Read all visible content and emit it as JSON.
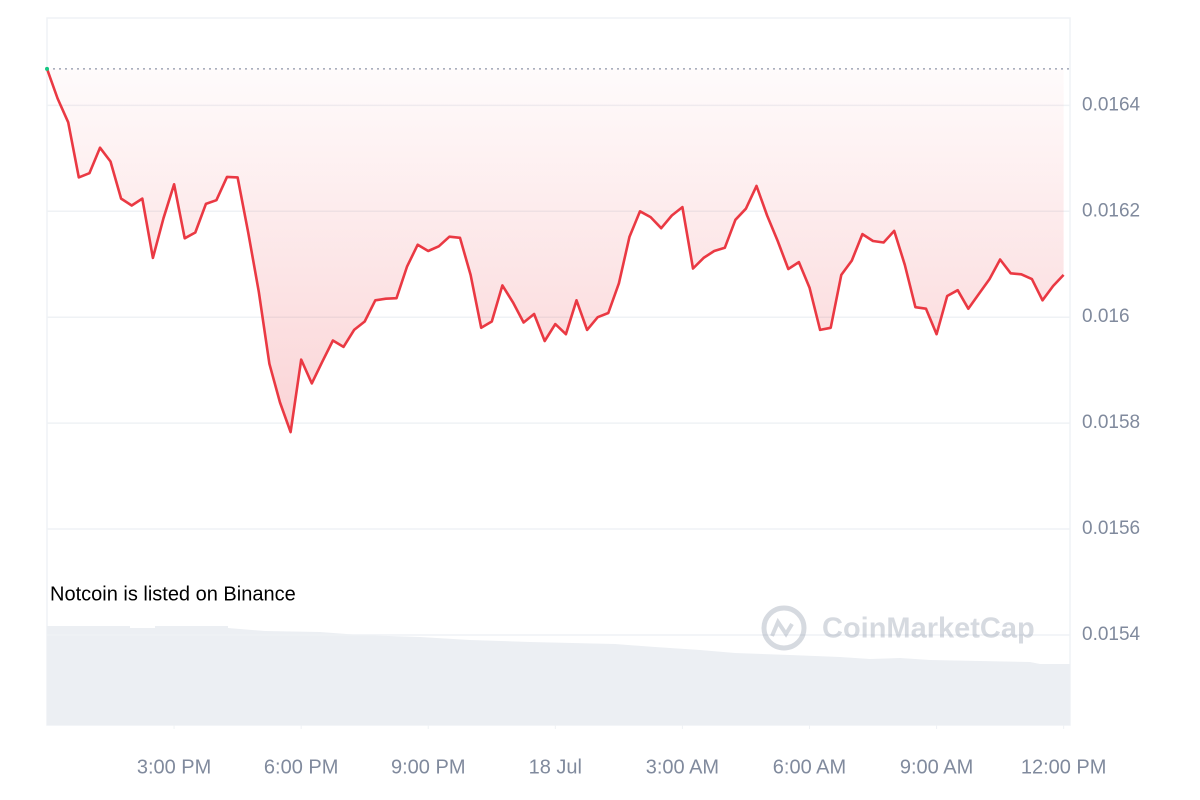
{
  "chart_data": {
    "type": "line",
    "annotation": "Notcoin is listed on Binance",
    "watermark": "CoinMarketCap",
    "color": "#ea3943",
    "x": [
      12,
      12.25,
      12.5,
      12.75,
      13,
      13.25,
      13.5,
      13.75,
      14,
      14.25,
      14.5,
      14.75,
      15,
      15.25,
      15.5,
      15.75,
      16,
      16.25,
      16.5,
      16.75,
      17,
      17.25,
      17.5,
      17.75,
      18,
      18.25,
      18.5,
      18.75,
      19,
      19.25,
      19.5,
      19.75,
      20,
      20.25,
      20.5,
      20.75,
      21,
      21.25,
      21.5,
      21.75,
      22,
      22.25,
      22.5,
      22.75,
      23,
      23.25,
      23.5,
      23.75,
      24,
      24.25,
      24.5,
      24.75,
      25,
      25.25,
      25.5,
      25.75,
      26,
      26.25,
      26.5,
      26.75,
      27,
      27.25,
      27.5,
      27.75,
      28,
      28.25,
      28.5,
      28.75,
      29,
      29.25,
      29.5,
      29.75,
      30,
      30.25,
      30.5,
      30.75,
      31,
      31.25,
      31.5,
      31.75,
      32,
      32.25,
      32.5,
      32.75,
      33,
      33.25,
      33.5,
      33.75,
      34,
      34.25,
      34.5,
      34.75,
      35,
      35.25,
      35.5,
      35.75,
      36
    ],
    "values": [
      0.016469,
      0.016413,
      0.016368,
      0.016264,
      0.016272,
      0.01632,
      0.016294,
      0.016224,
      0.016211,
      0.016224,
      0.016112,
      0.016187,
      0.016251,
      0.016149,
      0.01616,
      0.016214,
      0.016221,
      0.016265,
      0.016264,
      0.01616,
      0.016048,
      0.015912,
      0.015839,
      0.015783,
      0.01592,
      0.015875,
      0.015916,
      0.015956,
      0.015944,
      0.015976,
      0.015992,
      0.016032,
      0.016035,
      0.016036,
      0.016096,
      0.016137,
      0.016125,
      0.016134,
      0.016152,
      0.01615,
      0.01608,
      0.01598,
      0.015992,
      0.01606,
      0.016028,
      0.01599,
      0.016006,
      0.015955,
      0.015987,
      0.015968,
      0.016032,
      0.015976,
      0.016,
      0.016008,
      0.016064,
      0.016152,
      0.0162,
      0.016189,
      0.016168,
      0.016192,
      0.016208,
      0.016092,
      0.016112,
      0.016125,
      0.016131,
      0.016184,
      0.016205,
      0.016248,
      0.016192,
      0.016144,
      0.016091,
      0.016104,
      0.016056,
      0.015976,
      0.01598,
      0.01608,
      0.016107,
      0.016157,
      0.016144,
      0.016141,
      0.016163,
      0.016099,
      0.016019,
      0.016016,
      0.015968,
      0.01604,
      0.016051,
      0.016016,
      0.016044,
      0.016072,
      0.016109,
      0.016083,
      0.016081,
      0.016072,
      0.016032,
      0.016059,
      0.01608
    ],
    "xlim": [
      12,
      36.15
    ],
    "xticks": [
      {
        "value": 15,
        "label": "3:00 PM"
      },
      {
        "value": 18,
        "label": "6:00 PM"
      },
      {
        "value": 21,
        "label": "9:00 PM"
      },
      {
        "value": 24,
        "label": "18 Jul"
      },
      {
        "value": 27,
        "label": "3:00 AM"
      },
      {
        "value": 30,
        "label": "6:00 AM"
      },
      {
        "value": 33,
        "label": "9:00 AM"
      },
      {
        "value": 36,
        "label": "12:00 PM"
      }
    ],
    "ylim": [
      0.01523,
      0.016565
    ],
    "yticks": [
      0.0154,
      0.0156,
      0.0158,
      0.016,
      0.0162,
      0.0164
    ],
    "grid": true
  }
}
